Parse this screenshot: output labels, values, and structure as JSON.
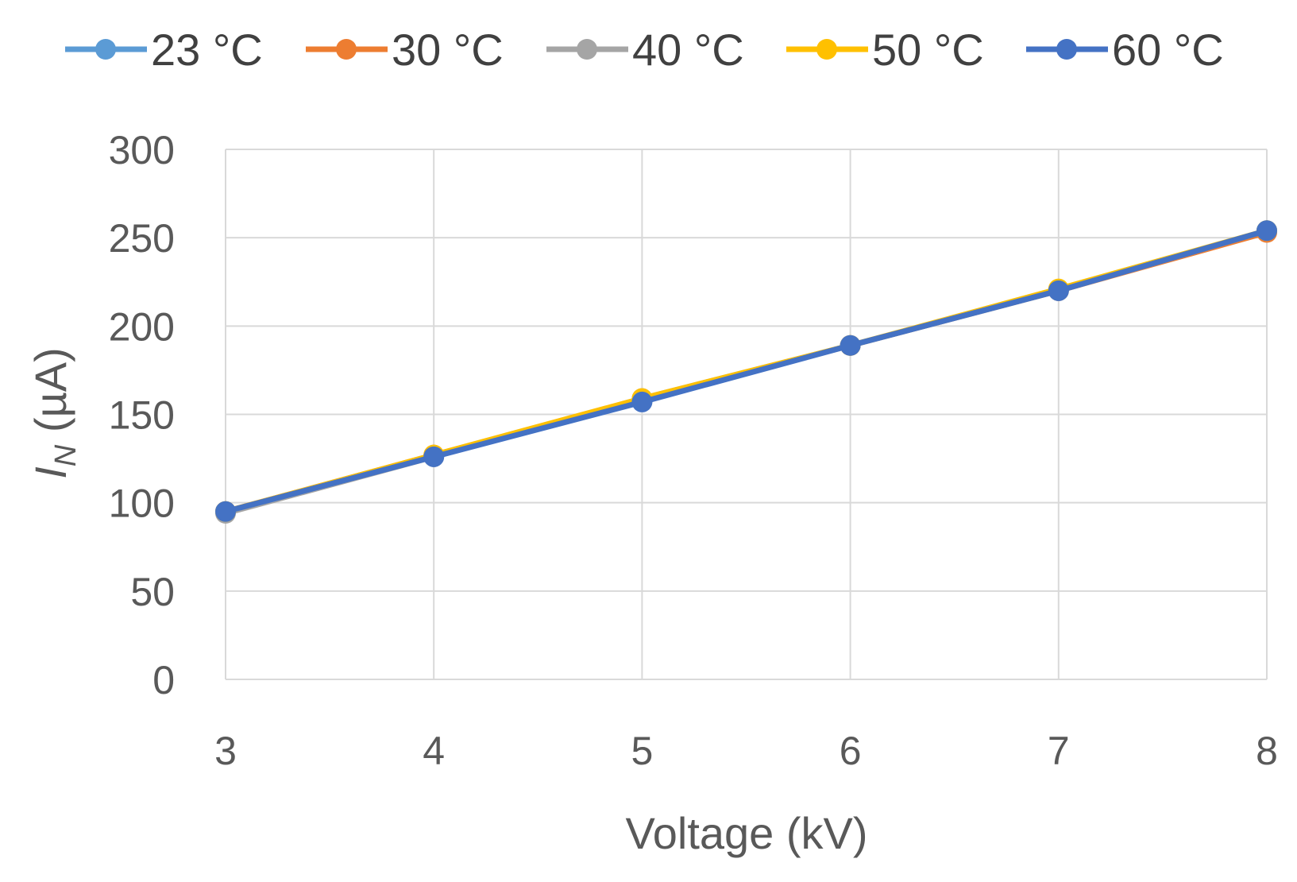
{
  "chart_data": {
    "type": "line",
    "xlabel": "Voltage (kV)",
    "ylabel": {
      "main": "I",
      "sub": "N",
      "unit": " (µA)"
    },
    "xlim": [
      3,
      8
    ],
    "ylim": [
      0,
      300
    ],
    "x_ticks": [
      3,
      4,
      5,
      6,
      7,
      8
    ],
    "y_ticks": [
      0,
      50,
      100,
      150,
      200,
      250,
      300
    ],
    "grid": true,
    "legend_position": "top",
    "x": [
      3,
      4,
      5,
      6,
      7,
      8
    ],
    "series": [
      {
        "name": "23 °C",
        "color": "#5B9BD5",
        "values": [
          95,
          126,
          158,
          189,
          220,
          254
        ]
      },
      {
        "name": "30 °C",
        "color": "#ED7D31",
        "values": [
          95,
          127,
          158,
          189,
          220,
          253
        ]
      },
      {
        "name": "40 °C",
        "color": "#A5A5A5",
        "values": [
          94,
          126,
          159,
          189,
          220,
          254
        ]
      },
      {
        "name": "50 °C",
        "color": "#FFC000",
        "values": [
          95,
          127,
          159,
          189,
          221,
          254
        ]
      },
      {
        "name": "60 °C",
        "color": "#4472C4",
        "values": [
          95,
          126,
          157,
          189,
          220,
          254
        ]
      }
    ]
  }
}
